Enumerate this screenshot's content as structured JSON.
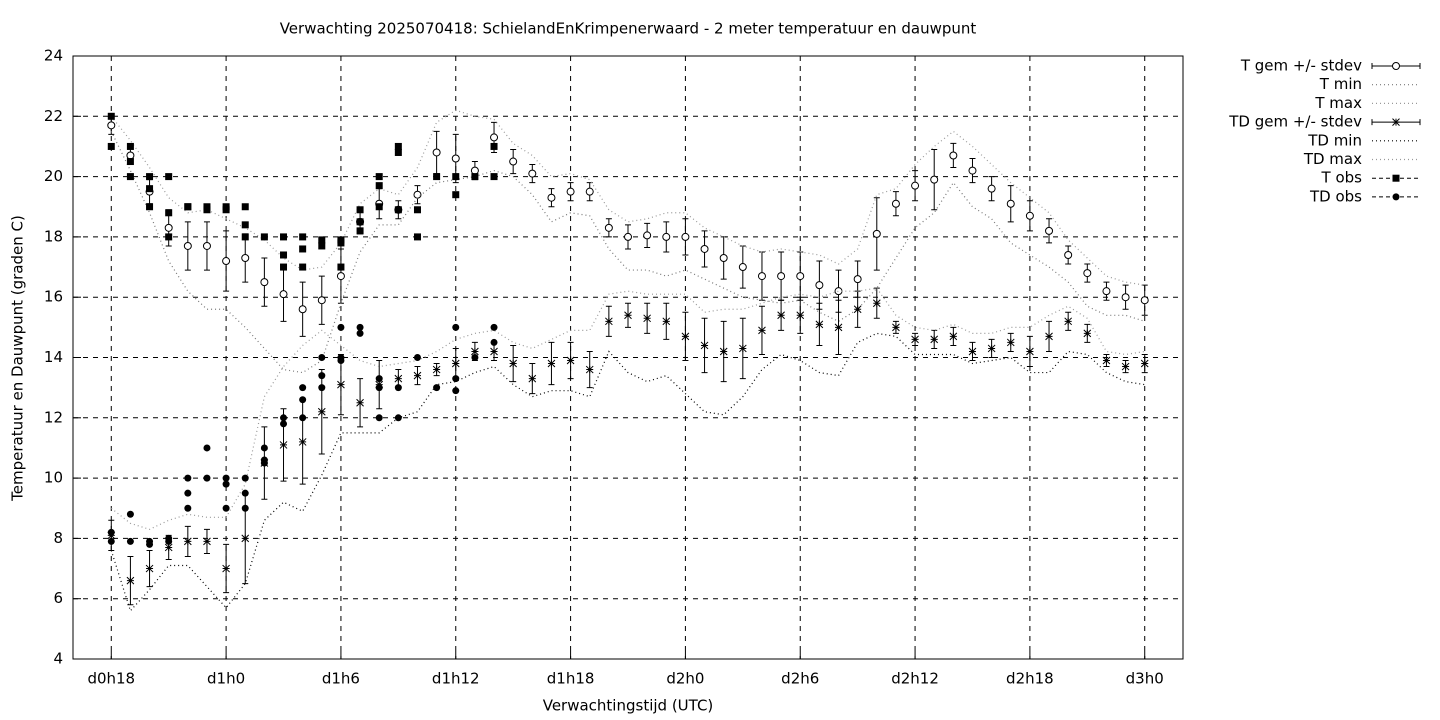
{
  "chart_data": {
    "type": "errorbar",
    "title": "Verwachting 2025070418: SchielandEnKrimpenerwaard - 2 meter temperatuur en dauwpunt",
    "xlabel": "Verwachtingstijd (UTC)",
    "ylabel": "Temperatuur en Dauwpunt (graden C)",
    "xlim": [
      16,
      74
    ],
    "ylim": [
      4,
      24
    ],
    "xticks": [
      {
        "value": 18,
        "label": "d0h18"
      },
      {
        "value": 24,
        "label": "d1h0"
      },
      {
        "value": 30,
        "label": "d1h6"
      },
      {
        "value": 36,
        "label": "d1h12"
      },
      {
        "value": 42,
        "label": "d1h18"
      },
      {
        "value": 48,
        "label": "d2h0"
      },
      {
        "value": 54,
        "label": "d2h6"
      },
      {
        "value": 60,
        "label": "d2h12"
      },
      {
        "value": 66,
        "label": "d2h18"
      },
      {
        "value": 72,
        "label": "d3h0"
      }
    ],
    "yticks": [
      4,
      6,
      8,
      10,
      12,
      14,
      16,
      18,
      20,
      22,
      24
    ],
    "grid": true,
    "legend": "right",
    "x": [
      18,
      19,
      20,
      21,
      22,
      23,
      24,
      25,
      26,
      27,
      28,
      29,
      30,
      31,
      32,
      33,
      34,
      35,
      36,
      37,
      38,
      39,
      40,
      41,
      42,
      43,
      44,
      45,
      46,
      47,
      48,
      49,
      50,
      51,
      52,
      53,
      54,
      55,
      56,
      57,
      58,
      59,
      60,
      61,
      62,
      63,
      64,
      65,
      66,
      67,
      68,
      69,
      70,
      71,
      72
    ],
    "series": [
      {
        "name": "T gem +/- stdev",
        "color": "#000000",
        "style": "errorbar",
        "marker": "open-circle",
        "values": [
          21.7,
          20.7,
          19.5,
          18.3,
          17.7,
          17.7,
          17.2,
          17.3,
          16.5,
          16.1,
          15.6,
          15.9,
          16.7,
          18.5,
          19.1,
          18.9,
          19.4,
          20.8,
          20.6,
          20.2,
          21.3,
          20.5,
          20.1,
          19.3,
          19.5,
          19.5,
          18.3,
          18.0,
          18.05,
          18.0,
          18.0,
          17.6,
          17.3,
          17.0,
          16.7,
          16.7,
          16.7,
          16.4,
          16.2,
          16.6,
          18.1,
          19.1,
          19.7,
          19.9,
          20.7,
          20.2,
          19.6,
          19.1,
          18.7,
          18.2,
          17.4,
          16.8,
          16.2,
          16.0,
          15.9
        ],
        "errors": [
          0.3,
          0.3,
          0.4,
          0.6,
          0.8,
          0.8,
          1.0,
          0.8,
          0.8,
          0.9,
          0.9,
          0.8,
          0.9,
          0.4,
          0.5,
          0.3,
          0.3,
          0.7,
          0.8,
          0.3,
          0.5,
          0.4,
          0.3,
          0.3,
          0.3,
          0.3,
          0.3,
          0.4,
          0.4,
          0.5,
          0.6,
          0.6,
          0.7,
          0.7,
          0.8,
          0.8,
          0.8,
          0.8,
          0.7,
          0.6,
          1.2,
          0.4,
          0.5,
          1.0,
          0.4,
          0.4,
          0.4,
          0.6,
          0.5,
          0.4,
          0.3,
          0.3,
          0.3,
          0.4,
          0.5
        ]
      },
      {
        "name": "T min",
        "color": "#777777",
        "style": "dotted",
        "values": [
          21.5,
          20.2,
          18.8,
          17.2,
          16.2,
          15.6,
          15.6,
          15.0,
          14.3,
          13.6,
          13.5,
          13.9,
          15.8,
          17.5,
          18.4,
          18.4,
          19.3,
          19.8,
          19.9,
          20.0,
          20.2,
          20.0,
          19.4,
          18.5,
          18.8,
          18.7,
          17.6,
          16.9,
          16.9,
          16.7,
          16.9,
          16.6,
          16.3,
          16.0,
          15.9,
          15.8,
          15.9,
          15.5,
          15.2,
          15.6,
          16.3,
          17.3,
          18.3,
          18.8,
          19.8,
          19.0,
          18.6,
          17.8,
          17.4,
          17.0,
          16.5,
          15.7,
          15.4,
          15.4,
          15.2
        ]
      },
      {
        "name": "T max",
        "color": "#999999",
        "style": "dotted",
        "values": [
          22.0,
          21.2,
          20.3,
          19.3,
          18.8,
          18.9,
          18.6,
          18.3,
          17.9,
          17.3,
          16.9,
          17.0,
          17.8,
          19.1,
          19.6,
          19.4,
          20.3,
          21.8,
          22.2,
          22.0,
          21.9,
          21.1,
          20.7,
          20.0,
          20.1,
          19.9,
          18.9,
          18.5,
          18.6,
          18.8,
          18.8,
          18.3,
          18.0,
          17.7,
          17.5,
          17.6,
          17.5,
          17.4,
          17.1,
          17.6,
          19.4,
          19.6,
          20.4,
          21.0,
          21.5,
          21.0,
          20.4,
          19.8,
          19.3,
          18.8,
          17.9,
          17.3,
          16.7,
          16.5,
          16.4
        ]
      },
      {
        "name": "TD gem +/- stdev",
        "color": "#000000",
        "style": "errorbar",
        "marker": "star",
        "values": [
          8.1,
          6.6,
          7.0,
          7.7,
          7.9,
          7.9,
          7.0,
          8.0,
          10.5,
          11.1,
          11.2,
          12.2,
          13.1,
          12.5,
          13.1,
          13.3,
          13.4,
          13.6,
          13.8,
          14.2,
          14.2,
          13.8,
          13.3,
          13.8,
          13.9,
          13.6,
          15.2,
          15.4,
          15.3,
          15.2,
          14.7,
          14.4,
          14.2,
          14.3,
          14.9,
          15.4,
          15.4,
          15.1,
          15.0,
          15.6,
          15.8,
          15.0,
          14.6,
          14.6,
          14.7,
          14.2,
          14.3,
          14.5,
          14.2,
          14.7,
          15.2,
          14.8,
          13.9,
          13.7,
          13.8
        ],
        "errors": [
          0.5,
          0.8,
          0.6,
          0.4,
          0.5,
          0.4,
          0.8,
          1.5,
          1.2,
          1.2,
          1.4,
          1.4,
          1.0,
          0.8,
          0.8,
          0.3,
          0.3,
          0.2,
          0.5,
          0.3,
          0.3,
          0.6,
          0.5,
          0.7,
          0.6,
          0.6,
          0.5,
          0.4,
          0.5,
          0.6,
          0.8,
          0.9,
          1.0,
          1.0,
          0.8,
          0.5,
          0.6,
          0.7,
          0.9,
          0.6,
          0.5,
          0.2,
          0.2,
          0.3,
          0.3,
          0.3,
          0.3,
          0.3,
          0.5,
          0.5,
          0.3,
          0.3,
          0.2,
          0.2,
          0.3
        ]
      },
      {
        "name": "TD min",
        "color": "#000000",
        "style": "dotted",
        "values": [
          7.6,
          5.6,
          6.3,
          7.1,
          7.1,
          6.4,
          5.7,
          6.5,
          8.6,
          9.2,
          8.9,
          10.1,
          11.5,
          11.5,
          11.5,
          12.0,
          12.2,
          13.1,
          13.2,
          13.5,
          13.7,
          13.1,
          12.7,
          12.9,
          12.9,
          12.7,
          14.2,
          13.5,
          13.2,
          13.4,
          12.8,
          12.2,
          12.1,
          12.7,
          13.6,
          14.1,
          13.9,
          13.5,
          13.4,
          14.5,
          14.8,
          14.7,
          14.1,
          14.1,
          14.1,
          13.8,
          13.9,
          14.0,
          13.5,
          13.5,
          14.2,
          14.1,
          13.5,
          13.2,
          13.1
        ]
      },
      {
        "name": "TD max",
        "color": "#999999",
        "style": "dotted",
        "values": [
          9.0,
          8.5,
          8.3,
          8.6,
          8.8,
          8.7,
          8.7,
          9.8,
          12.7,
          13.7,
          14.4,
          14.9,
          14.4,
          13.9,
          13.7,
          13.8,
          13.9,
          14.2,
          14.6,
          14.8,
          14.9,
          14.5,
          14.3,
          14.6,
          14.9,
          14.9,
          16.1,
          16.2,
          16.1,
          16.1,
          16.1,
          15.5,
          15.6,
          15.6,
          15.8,
          16.0,
          16.1,
          16.0,
          16.2,
          16.2,
          16.3,
          15.4,
          15.0,
          14.9,
          15.1,
          14.8,
          14.8,
          15.0,
          15.0,
          15.4,
          15.7,
          15.3,
          14.2,
          14.1,
          14.2
        ]
      },
      {
        "name": "T obs",
        "color": "#000000",
        "style": "points",
        "marker": "square",
        "x": [
          18,
          18,
          19,
          19,
          19,
          20,
          20,
          20,
          21,
          21,
          21,
          22,
          22,
          23,
          23,
          24,
          24,
          25,
          25,
          25,
          26,
          27,
          27,
          27,
          28,
          28,
          28,
          29,
          29,
          30,
          30,
          30,
          31,
          31,
          31,
          32,
          32,
          32,
          33,
          33,
          33,
          34,
          34,
          35,
          36,
          36,
          37,
          38,
          38
        ],
        "values": [
          22.0,
          21.0,
          21.0,
          20.5,
          20.0,
          20.0,
          19.6,
          19.0,
          20.0,
          18.8,
          18.0,
          19.0,
          19.0,
          19.0,
          18.9,
          19.0,
          18.9,
          19.0,
          18.4,
          18.0,
          18.0,
          18.0,
          17.4,
          17.0,
          18.0,
          17.6,
          17.0,
          17.9,
          17.7,
          17.9,
          17.8,
          17.0,
          18.9,
          18.5,
          18.2,
          20.0,
          19.7,
          19.0,
          21.0,
          20.8,
          18.9,
          18.9,
          18.0,
          20.0,
          20.0,
          19.4,
          20.0,
          21.0,
          20.0
        ]
      },
      {
        "name": "TD obs",
        "color": "#000000",
        "style": "points",
        "marker": "dot",
        "x": [
          18,
          18,
          19,
          19,
          20,
          20,
          21,
          21,
          22,
          22,
          22,
          23,
          23,
          24,
          24,
          24,
          25,
          25,
          25,
          26,
          26,
          26,
          27,
          27,
          28,
          28,
          28,
          29,
          29,
          29,
          30,
          30,
          30,
          31,
          31,
          32,
          32,
          32,
          33,
          33,
          34,
          35,
          36,
          36,
          36,
          37,
          38,
          38
        ],
        "values": [
          8.2,
          7.9,
          8.8,
          7.9,
          7.9,
          7.8,
          8.0,
          7.9,
          10.0,
          9.5,
          9.0,
          11.0,
          10.0,
          10.0,
          9.8,
          9.0,
          10.0,
          9.5,
          9.0,
          11.0,
          10.6,
          10.5,
          12.0,
          11.8,
          13.0,
          12.6,
          12.0,
          14.0,
          13.4,
          13.0,
          15.0,
          14.0,
          13.9,
          15.0,
          14.8,
          13.3,
          13.0,
          12.0,
          13.0,
          12.0,
          14.0,
          13.0,
          15.0,
          13.3,
          12.9,
          14.0,
          15.0,
          14.5
        ]
      }
    ]
  }
}
